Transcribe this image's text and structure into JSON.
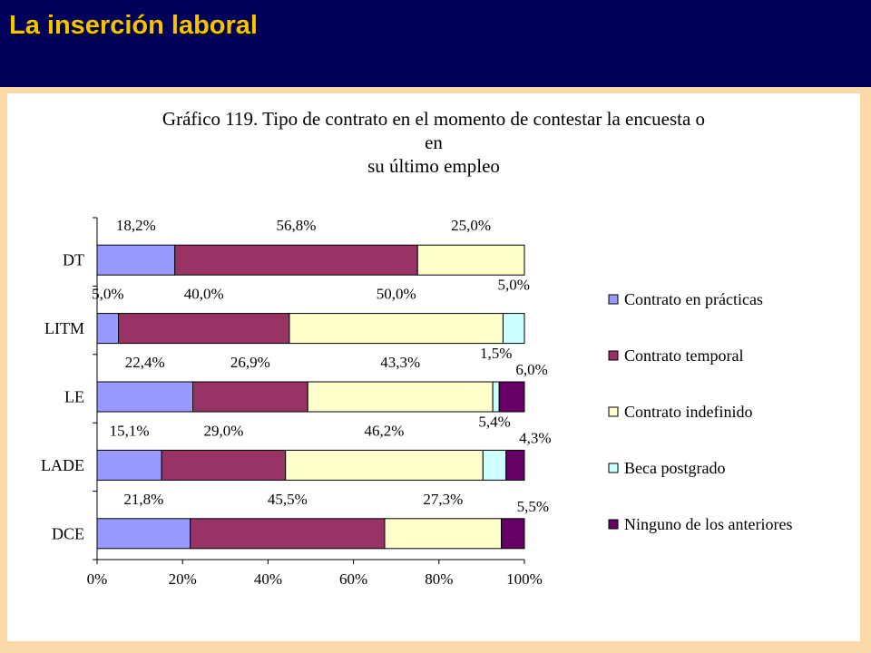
{
  "slide": {
    "title": "La inserción laboral"
  },
  "chart_data": {
    "type": "bar",
    "orientation": "horizontal",
    "stacked": "percent",
    "title": "Gráfico 119. Tipo de contrato en el momento de contestar la encuesta o en su último empleo",
    "title_lines": [
      "Gráfico 119. Tipo de contrato en el momento de contestar la encuesta o en",
      "su último empleo"
    ],
    "categories": [
      "DT",
      "LITM",
      "LE",
      "LADE",
      "DCE"
    ],
    "xlim": [
      0,
      100
    ],
    "xticks": [
      "0%",
      "20%",
      "40%",
      "60%",
      "80%",
      "100%"
    ],
    "legend_position": "right",
    "grid": false,
    "series": [
      {
        "name": "Contrato en prácticas",
        "color": "#9999ff",
        "values": [
          18.2,
          5.0,
          22.4,
          15.1,
          21.8
        ],
        "labels": [
          "18,2%",
          "5,0%",
          "22,4%",
          "15,1%",
          "21,8%"
        ]
      },
      {
        "name": "Contrato temporal",
        "color": "#993366",
        "values": [
          56.8,
          40.0,
          26.9,
          29.0,
          45.5
        ],
        "labels": [
          "56,8%",
          "40,0%",
          "26,9%",
          "29,0%",
          "45,5%"
        ]
      },
      {
        "name": "Contrato indefinido",
        "color": "#ffffcc",
        "values": [
          25.0,
          50.0,
          43.3,
          46.2,
          27.3
        ],
        "labels": [
          "25,0%",
          "50,0%",
          "43,3%",
          "46,2%",
          "27,3%"
        ]
      },
      {
        "name": "Beca postgrado",
        "color": "#ccffff",
        "values": [
          0,
          5.0,
          1.5,
          5.4,
          0
        ],
        "labels": [
          "",
          "5,0%",
          "1,5%",
          "5,4%",
          ""
        ]
      },
      {
        "name": "Ninguno de los anteriores",
        "color": "#660066",
        "values": [
          0,
          0,
          6.0,
          4.3,
          5.5
        ],
        "labels": [
          "",
          "",
          "6,0%",
          "4,3%",
          "5,5%"
        ]
      }
    ]
  }
}
